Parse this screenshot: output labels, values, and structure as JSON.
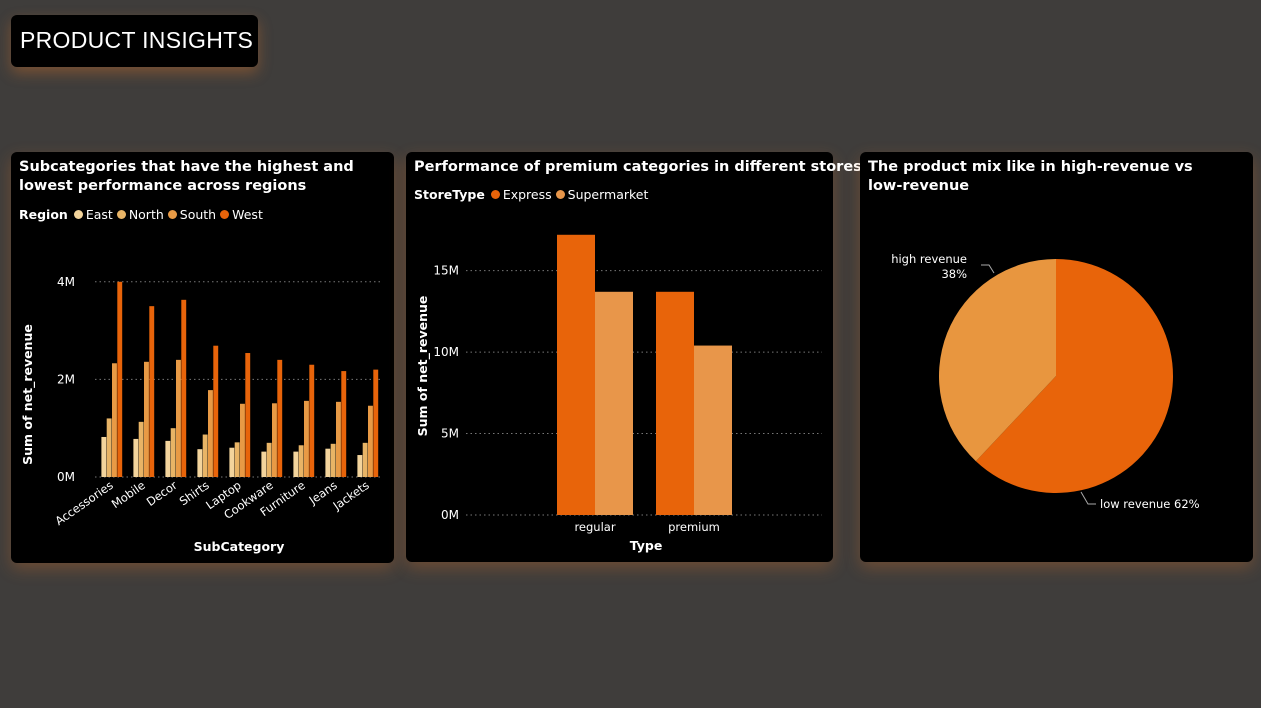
{
  "page": {
    "title": "PRODUCT INSIGHTS"
  },
  "colors": {
    "east": "#f3d49c",
    "north": "#e8b466",
    "south": "#e89a45",
    "west": "#e8640a",
    "express": "#e8640a",
    "supermarket": "#e8964a",
    "high_revenue": "#e8963f",
    "low_revenue": "#e8640a",
    "background": "#3f3d3b",
    "card": "#000000"
  },
  "chart_data": [
    {
      "type": "bar",
      "title": "Subcategories that have the highest and lowest performance across regions",
      "legend_title": "Region",
      "xlabel": "SubCategory",
      "ylabel": "Sum of net_revenue",
      "y_ticks": [
        "0M",
        "2M",
        "4M"
      ],
      "ylim": [
        0,
        4200000
      ],
      "grid": true,
      "legend_position": "top-left",
      "categories": [
        "Accessories",
        "Mobile",
        "Decor",
        "Shirts",
        "Laptop",
        "Cookware",
        "Furniture",
        "Jeans",
        "Jackets"
      ],
      "series": [
        {
          "name": "East",
          "values": [
            820000,
            780000,
            740000,
            570000,
            600000,
            520000,
            520000,
            580000,
            450000
          ]
        },
        {
          "name": "North",
          "values": [
            1200000,
            1130000,
            1000000,
            870000,
            710000,
            700000,
            650000,
            680000,
            700000
          ]
        },
        {
          "name": "South",
          "values": [
            2330000,
            2360000,
            2400000,
            1780000,
            1500000,
            1510000,
            1560000,
            1540000,
            1460000
          ]
        },
        {
          "name": "West",
          "values": [
            4000000,
            3500000,
            3630000,
            2690000,
            2540000,
            2400000,
            2300000,
            2170000,
            2200000
          ]
        }
      ]
    },
    {
      "type": "bar",
      "title": "Performance of premium categories in different stores",
      "legend_title": "StoreType",
      "xlabel": "Type",
      "ylabel": "Sum of net_revenue",
      "y_ticks": [
        "0M",
        "5M",
        "10M",
        "15M"
      ],
      "ylim": [
        0,
        17800000
      ],
      "grid": true,
      "legend_position": "top-left",
      "categories": [
        "regular",
        "premium"
      ],
      "series": [
        {
          "name": "Express",
          "values": [
            17200000,
            13700000
          ]
        },
        {
          "name": "Supermarket",
          "values": [
            13700000,
            10400000
          ]
        }
      ]
    },
    {
      "type": "pie",
      "title": "The product mix like in high-revenue vs low-revenue",
      "slices": [
        {
          "label": "high revenue",
          "value": 38,
          "display": "38%"
        },
        {
          "label": "low revenue",
          "value": 62,
          "display": "low revenue 62%"
        }
      ]
    }
  ]
}
